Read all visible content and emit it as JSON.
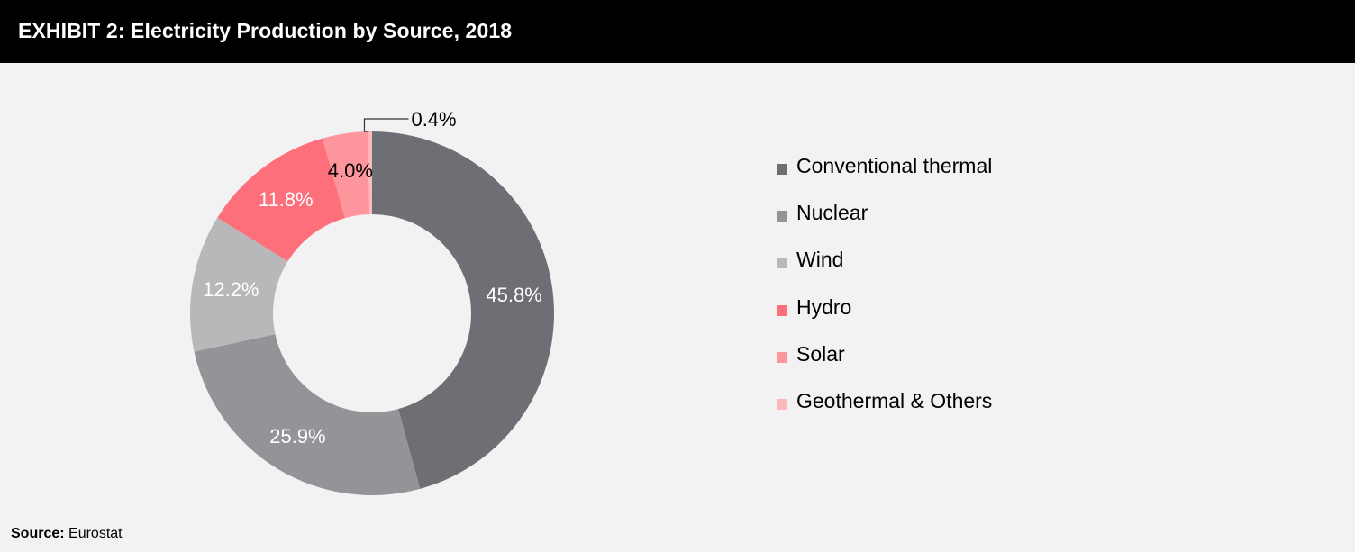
{
  "header": {
    "title": "EXHIBIT 2: Electricity Production by Source, 2018"
  },
  "chart_data": {
    "type": "pie",
    "variant": "donut",
    "title": "EXHIBIT 2: Electricity Production by Source, 2018",
    "unit": "%",
    "legend_position": "right",
    "series": [
      {
        "name": "Conventional thermal",
        "value": 45.8,
        "label": "45.8%",
        "color": "#6e6e75"
      },
      {
        "name": "Nuclear",
        "value": 25.9,
        "label": "25.9%",
        "color": "#939398"
      },
      {
        "name": "Wind",
        "value": 12.2,
        "label": "12.2%",
        "color": "#b8b8bb"
      },
      {
        "name": "Hydro",
        "value": 11.8,
        "label": "11.8%",
        "color": "#fd6f7b"
      },
      {
        "name": "Solar",
        "value": 4.0,
        "label": "4.0%",
        "color": "#fd959c"
      },
      {
        "name": "Geothermal & Others",
        "value": 0.4,
        "label": "0.4%",
        "color": "#fbb8bd"
      }
    ]
  },
  "source": {
    "label": "Source:",
    "text": "Eurostat"
  }
}
